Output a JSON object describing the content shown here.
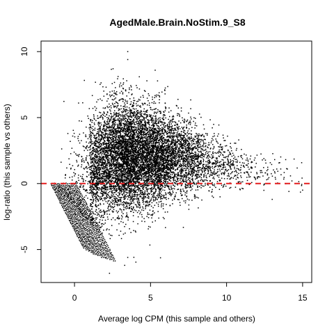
{
  "chart_data": {
    "type": "scatter",
    "title": "AgedMale.Brain.NoStim.9_S8",
    "xlabel": "Average log CPM (this sample and others)",
    "ylabel": "log-ratio (this sample vs others)",
    "xlim": [
      -2.2,
      15.6
    ],
    "ylim": [
      -7.5,
      10.8
    ],
    "xticks": [
      0,
      5,
      10,
      15
    ],
    "yticks": [
      -5,
      0,
      5,
      10
    ],
    "xtick_labels": [
      "0",
      "5",
      "10",
      "15"
    ],
    "ytick_labels": [
      "-5",
      "0",
      "5",
      "10"
    ],
    "grid": false,
    "reference_line": {
      "y": 0,
      "color": "#e41a1c",
      "style": "dashed"
    },
    "point_color": "#000000",
    "approx_point_count": 9000,
    "density_peak": {
      "x": 4.5,
      "y": 1.8
    },
    "extreme_points": [
      {
        "x": 3.5,
        "y": 10.0
      },
      {
        "x": 3.5,
        "y": 9.4
      },
      {
        "x": 2.3,
        "y": -6.8
      },
      {
        "x": 3.3,
        "y": -6.2
      },
      {
        "x": 3.5,
        "y": -5.6
      },
      {
        "x": 15.0,
        "y": -0.5
      },
      {
        "x": 14.1,
        "y": -0.6
      },
      {
        "x": 13.0,
        "y": -1.2
      },
      {
        "x": 14.0,
        "y": 1.1
      },
      {
        "x": 13.3,
        "y": 1.1
      }
    ]
  }
}
